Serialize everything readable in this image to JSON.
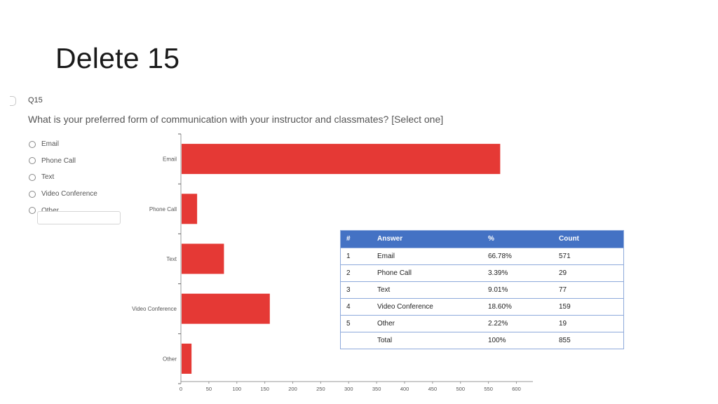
{
  "slide": {
    "title": "Delete 15"
  },
  "question": {
    "id": "Q15",
    "text": "What is your preferred form of communication with your instructor and classmates? [Select one]",
    "options": [
      "Email",
      "Phone Call",
      "Text",
      "Video Conference",
      "Other"
    ]
  },
  "chart_data": {
    "type": "bar",
    "orientation": "horizontal",
    "categories": [
      "Email",
      "Phone Call",
      "Text",
      "Video Conference",
      "Other"
    ],
    "values": [
      571,
      29,
      77,
      159,
      19
    ],
    "xlim": [
      0,
      625
    ],
    "xticks": [
      0,
      50,
      100,
      150,
      200,
      250,
      300,
      350,
      400,
      450,
      500,
      550,
      600
    ],
    "bar_color": "#e53935",
    "grid": false,
    "title": "",
    "xlabel": "",
    "ylabel": ""
  },
  "table": {
    "headers": [
      "#",
      "Answer",
      "%",
      "Count"
    ],
    "rows": [
      [
        "1",
        "Email",
        "66.78%",
        "571"
      ],
      [
        "2",
        "Phone Call",
        "3.39%",
        "29"
      ],
      [
        "3",
        "Text",
        "9.01%",
        "77"
      ],
      [
        "4",
        "Video Conference",
        "18.60%",
        "159"
      ],
      [
        "5",
        "Other",
        "2.22%",
        "19"
      ],
      [
        "",
        "Total",
        "100%",
        "855"
      ]
    ],
    "header_color": "#4472c4",
    "border_color": "#8eaadb"
  }
}
